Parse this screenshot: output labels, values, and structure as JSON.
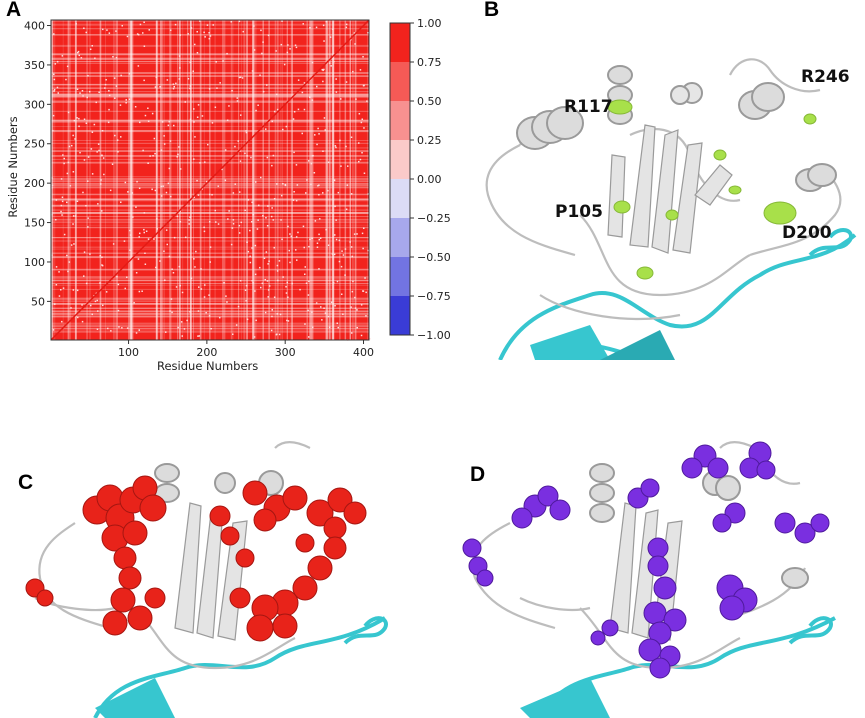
{
  "panels": {
    "a": {
      "letter": "A"
    },
    "b": {
      "letter": "B"
    },
    "c": {
      "letter": "C"
    },
    "d": {
      "letter": "D"
    }
  },
  "chart_data": {
    "type": "heatmap",
    "xlabel": "Residue Numbers",
    "ylabel": "Residue Numbers",
    "xlim": [
      1,
      407
    ],
    "ylim": [
      1,
      407
    ],
    "x_ticks": [
      100,
      200,
      300,
      400
    ],
    "y_ticks": [
      50,
      100,
      150,
      200,
      250,
      300,
      350,
      400
    ],
    "colorbar": {
      "ticks": [
        "1.00",
        "0.75",
        "0.50",
        "0.25",
        "0.00",
        "−0.25",
        "−0.50",
        "−0.75",
        "−1.00"
      ],
      "range": [
        -1,
        1
      ],
      "colors": [
        "#f2231d",
        "#f55a56",
        "#f89190",
        "#fbcac9",
        "#dcdcf6",
        "#a7a8ec",
        "#7274e2",
        "#3a3cd6"
      ]
    },
    "grid": false
  },
  "structure_labels": [
    "R117",
    "R246",
    "P105",
    "D200"
  ],
  "colors": {
    "protein": "#c9c9c9",
    "partner": "#37c6cf",
    "hotspot_green": "#a8e04a",
    "panel_c_spheres": "#e8231a",
    "panel_d_spheres": "#7a2fe0"
  }
}
